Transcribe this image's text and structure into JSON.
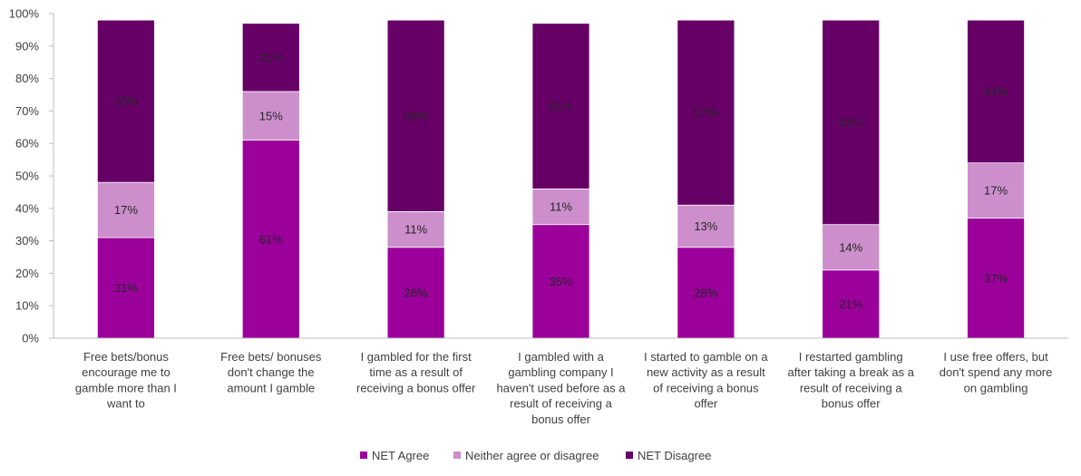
{
  "chart_data": {
    "type": "bar",
    "stacked": true,
    "categories": [
      [
        "Free bets/bonus",
        "encourage me to",
        "gamble more than I",
        "want to"
      ],
      [
        "Free bets/ bonuses",
        "don't change the",
        "amount I gamble"
      ],
      [
        "I gambled for the first",
        "time as a result of",
        "receiving a bonus offer"
      ],
      [
        "I gambled with a",
        "gambling company I",
        "haven't used before as a",
        "result of receiving a",
        "bonus offer"
      ],
      [
        "I started to gamble on a",
        "new activity as a result",
        "of receiving a bonus",
        "offer"
      ],
      [
        "I restarted gambling",
        "after taking a break as a",
        "result of receiving a",
        "bonus offer"
      ],
      [
        "I use free offers, but",
        "don't spend any more",
        "on gambling"
      ]
    ],
    "series": [
      {
        "name": "NET Agree",
        "color": "#9b009b",
        "values": [
          31,
          61,
          28,
          35,
          28,
          21,
          37
        ],
        "labels": [
          "31%",
          "61%",
          "28%",
          "35%",
          "28%",
          "21%",
          "37%"
        ]
      },
      {
        "name": "Neither agree or disagree",
        "color": "#cc8fcc",
        "values": [
          17,
          15,
          11,
          11,
          13,
          14,
          17
        ],
        "labels": [
          "17%",
          "15%",
          "11%",
          "11%",
          "13%",
          "14%",
          "17%"
        ]
      },
      {
        "name": "NET Disagree",
        "color": "#660066",
        "values": [
          50,
          21,
          59,
          51,
          57,
          63,
          44
        ],
        "labels": [
          "50%",
          "21%",
          "59%",
          "51%",
          "57%",
          "63%",
          "44%"
        ]
      }
    ],
    "yticks": [
      "0%",
      "10%",
      "20%",
      "30%",
      "40%",
      "50%",
      "60%",
      "70%",
      "80%",
      "90%",
      "100%"
    ],
    "ylim": [
      0,
      100
    ],
    "grid": false,
    "legend_position": "bottom"
  }
}
